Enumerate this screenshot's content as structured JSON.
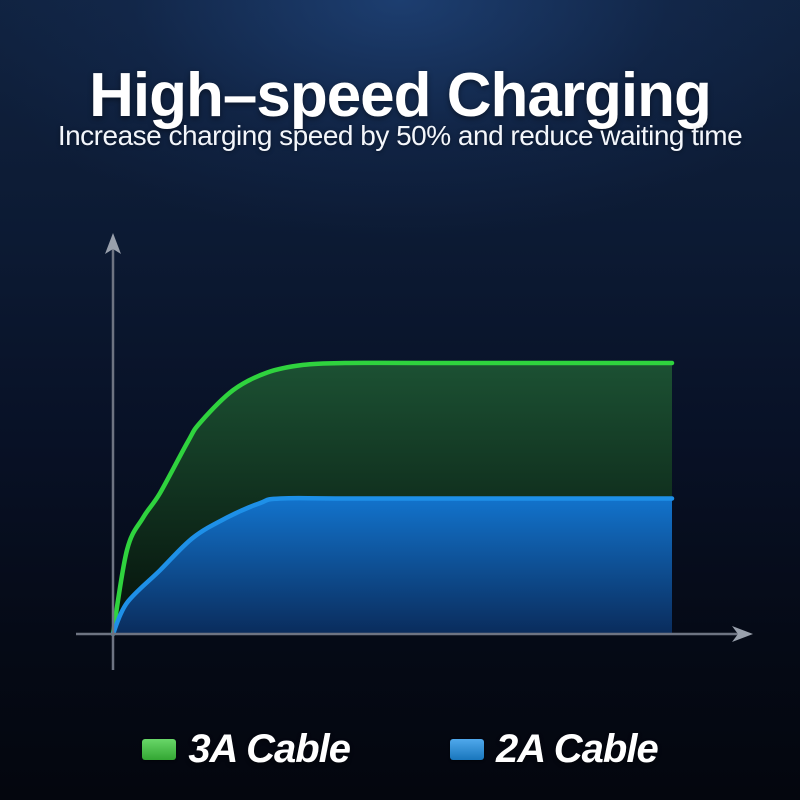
{
  "header": {
    "title": "High–speed Charging",
    "subtitle": "Increase charging speed by 50% and reduce waiting time"
  },
  "legend": {
    "items": [
      {
        "label": "3A Cable",
        "color": "#3ecb3e"
      },
      {
        "label": "2A Cable",
        "color": "#1e90e6"
      }
    ]
  },
  "colors": {
    "background_top_glow": "#1d3b69",
    "background_bottom": "#04060e",
    "text": "#ffffff",
    "green_accent": "#2fd33e",
    "blue_accent": "#1e90e8"
  },
  "chart_data": {
    "type": "area",
    "title": "High–speed Charging",
    "subtitle": "Increase charging speed by 50% and reduce waiting time",
    "xlabel": "",
    "ylabel": "",
    "x_range": [
      0,
      1
    ],
    "y_range": [
      0,
      100
    ],
    "grid": false,
    "axis_ticks": false,
    "axis_arrows": true,
    "axes_color": "#6e7482",
    "axes_arrow_color": "#99a0ac",
    "legend_position": "bottom",
    "description": "Charge level vs time; 3A cable saturates at twice the level of 2A cable (no numeric tick labels shown)",
    "series": [
      {
        "name": "3A Cable",
        "line_color": "#2fd33e",
        "fill_top": "#1c5133",
        "fill_bottom": "#05100a",
        "plateau_value": 100,
        "points": [
          [
            0,
            0
          ],
          [
            0.025,
            31
          ],
          [
            0.054,
            43
          ],
          [
            0.084,
            52
          ],
          [
            0.134,
            71
          ],
          [
            0.156,
            78
          ],
          [
            0.215,
            90
          ],
          [
            0.276,
            96.5
          ],
          [
            0.34,
            99.3
          ],
          [
            0.415,
            100
          ],
          [
            0.55,
            100
          ],
          [
            1,
            100
          ]
        ]
      },
      {
        "name": "2A Cable",
        "line_color": "#1e90e8",
        "fill_top": "#1273cc",
        "fill_bottom": "#0a2c5c",
        "plateau_value": 50,
        "points": [
          [
            0,
            0
          ],
          [
            0.025,
            11.5
          ],
          [
            0.084,
            23.5
          ],
          [
            0.143,
            35.5
          ],
          [
            0.204,
            43
          ],
          [
            0.263,
            48.3
          ],
          [
            0.3,
            50
          ],
          [
            0.45,
            50
          ],
          [
            1,
            50
          ]
        ]
      }
    ]
  }
}
